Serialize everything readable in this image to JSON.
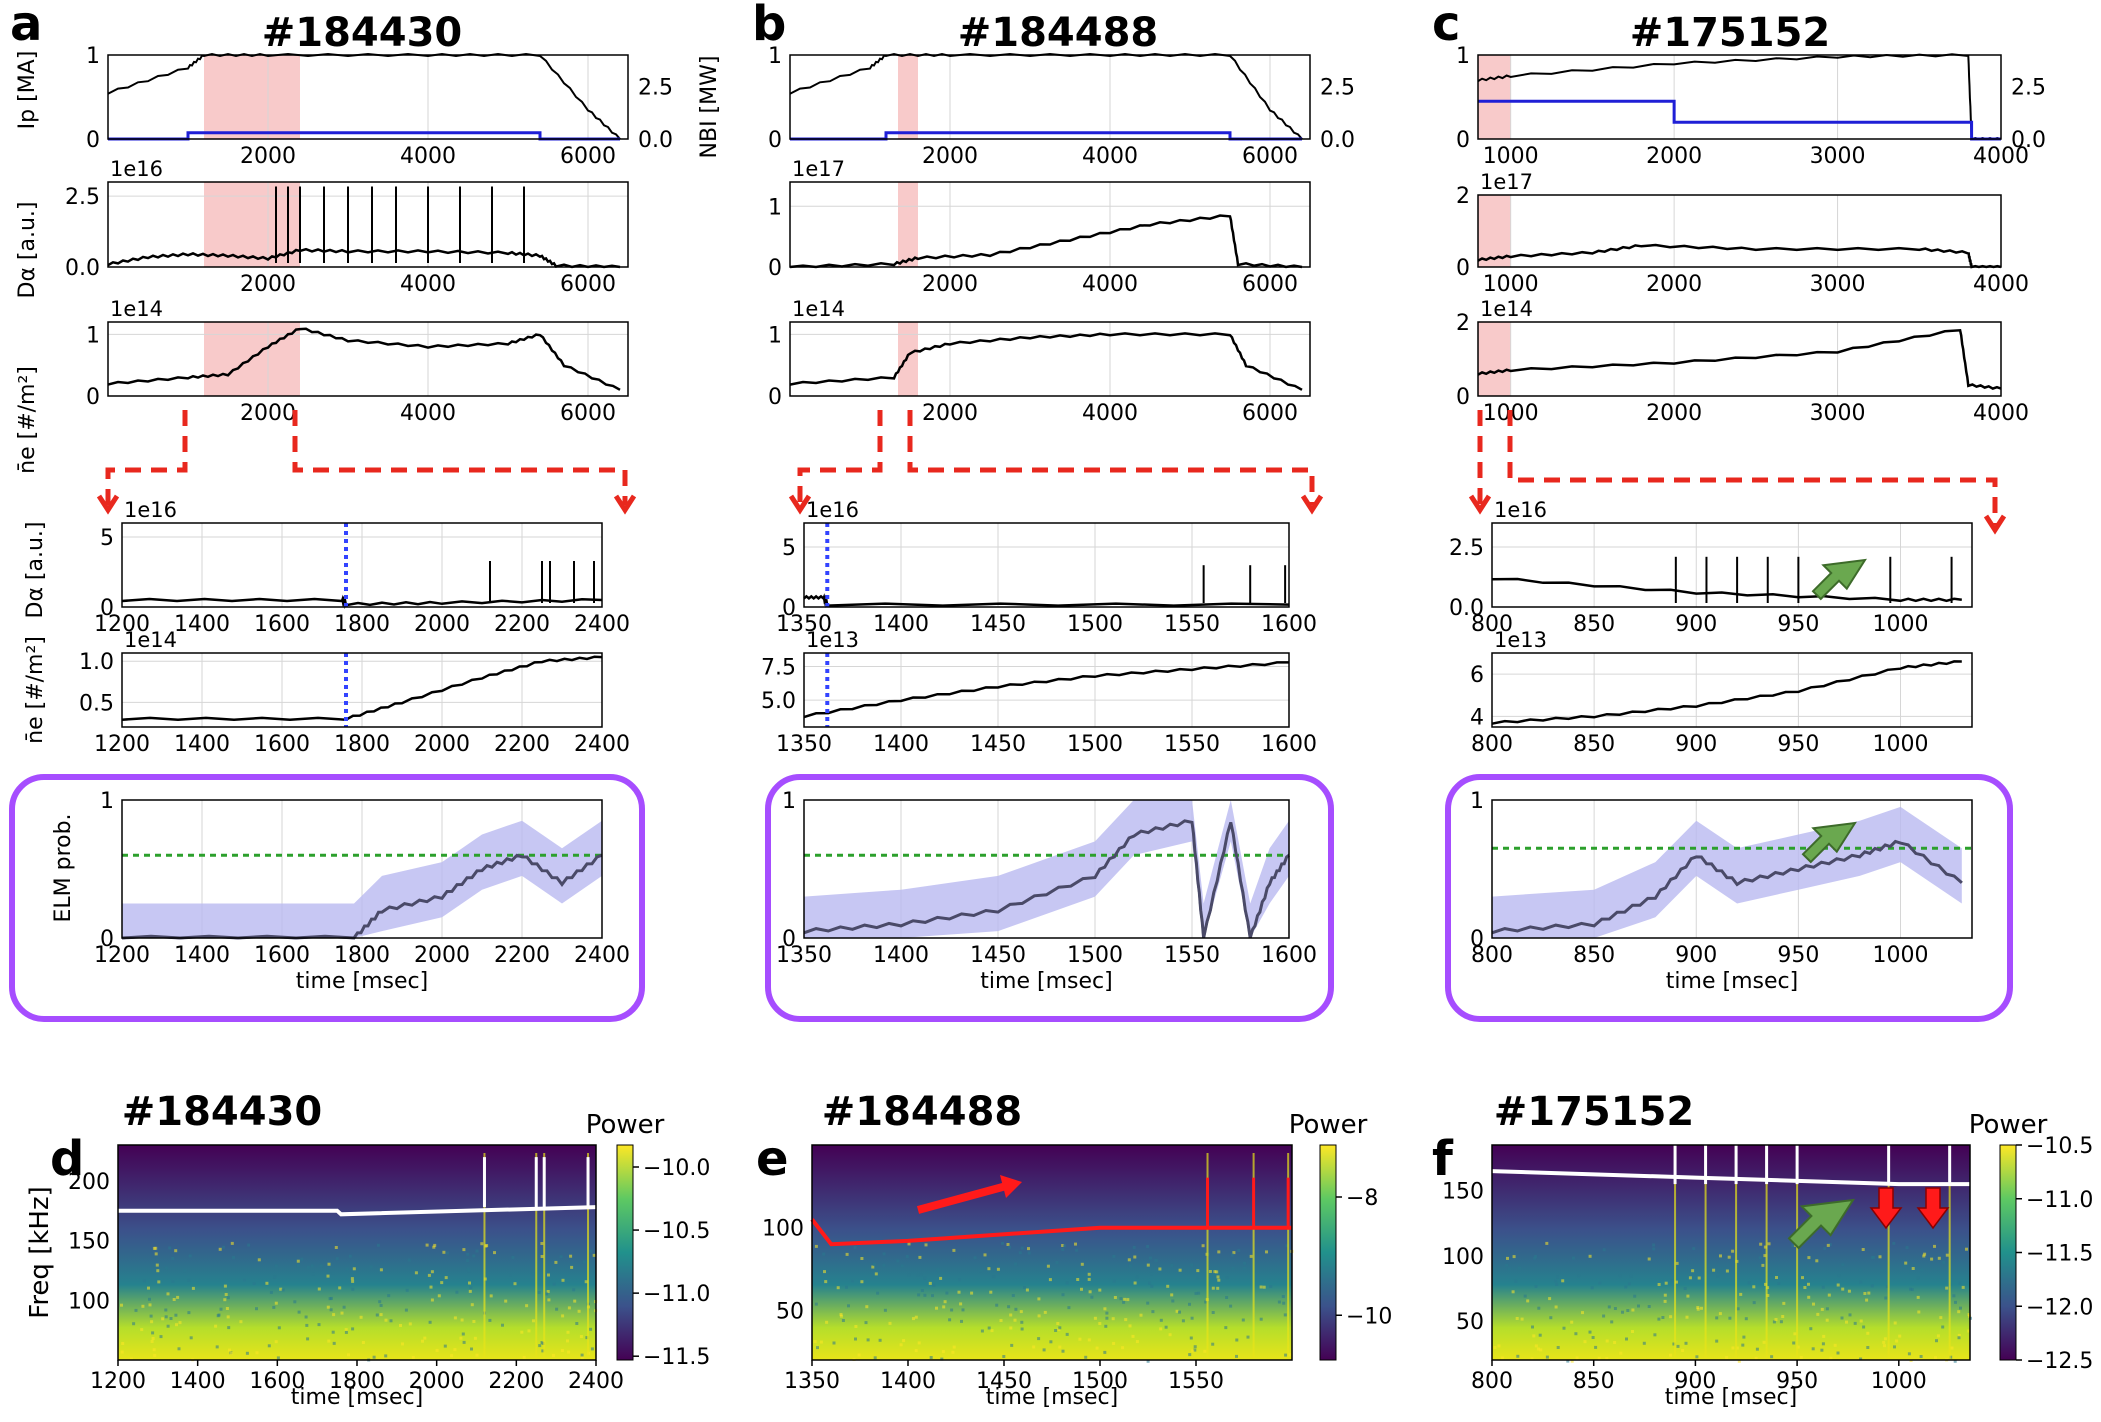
{
  "figure": {
    "panel_letters": [
      "a",
      "b",
      "c",
      "d",
      "e",
      "f"
    ],
    "shots": [
      "#184430",
      "#184488",
      "#175152"
    ],
    "colors": {
      "line": "#000000",
      "nbi": "#1f1fd6",
      "shade": "#f4a6a6",
      "arrow": "#e8281e",
      "box": "#a64dff",
      "threshold": "#2ca02c",
      "prob": "#4a4a68",
      "prob_band": "#b9b9f0",
      "green_arrow": "#6aa84f"
    }
  },
  "chart_data": [
    {
      "id": "a-top",
      "type": "line",
      "shot": "#184430",
      "ylabel": "Ip [MA]",
      "ylabel2": "NBI [MW]",
      "x": [
        0,
        1000,
        1200,
        2000,
        4000,
        5400,
        6000,
        6400
      ],
      "series": [
        {
          "name": "Ip",
          "values": [
            0.55,
            0.85,
            1.0,
            1.0,
            1.0,
            1.0,
            0.35,
            0.0
          ]
        },
        {
          "name": "NBI",
          "axis": "right",
          "values": [
            0.0,
            0.3,
            0.3,
            0.3,
            0.3,
            0.0,
            0.0,
            0.0
          ]
        }
      ],
      "xlim": [
        0,
        6500
      ],
      "ylim": [
        0,
        1
      ],
      "ylim2": [
        0,
        4
      ],
      "xticks": [
        "2000",
        "4000",
        "6000"
      ],
      "yticks": [
        "0",
        "1"
      ],
      "yticks2": [
        "0.0",
        "2.5"
      ],
      "shaded": [
        1200,
        2400
      ]
    },
    {
      "id": "a-mid",
      "type": "line",
      "ylabel": "Dα [a.u.]",
      "scale": "1e16",
      "x": [
        0,
        500,
        1000,
        1500,
        2000,
        2400,
        3000,
        4000,
        5000,
        5400,
        5600,
        6400
      ],
      "values": [
        0.1,
        0.35,
        0.45,
        0.4,
        0.3,
        0.6,
        0.55,
        0.55,
        0.5,
        0.4,
        0.05,
        0.0
      ],
      "spikes": [
        2100,
        2250,
        2400,
        2700,
        3000,
        3300,
        3600,
        4000,
        4400,
        4800,
        5200
      ],
      "xlim": [
        0,
        6500
      ],
      "ylim": [
        0,
        3
      ],
      "xticks": [
        "2000",
        "4000",
        "6000"
      ],
      "yticks": [
        "0.0",
        "2.5"
      ],
      "shaded": [
        1200,
        2400
      ]
    },
    {
      "id": "a-bot",
      "type": "line",
      "ylabel": "n̄e [#/m²]",
      "scale": "1e14",
      "x": [
        0,
        1000,
        1500,
        2000,
        2400,
        3000,
        4000,
        5000,
        5400,
        5700,
        6400
      ],
      "values": [
        0.2,
        0.3,
        0.35,
        0.8,
        1.1,
        0.9,
        0.8,
        0.85,
        1.0,
        0.5,
        0.1
      ],
      "xlim": [
        0,
        6500
      ],
      "ylim": [
        0,
        1.2
      ],
      "xticks": [
        "2000",
        "4000",
        "6000"
      ],
      "yticks": [
        "0",
        "1"
      ],
      "shaded": [
        1200,
        2400
      ]
    },
    {
      "id": "a-zoom-da",
      "type": "line",
      "ylabel": "Dα [a.u.]",
      "scale": "1e16",
      "x": [
        1200,
        1750,
        1760,
        2000,
        2400
      ],
      "values": [
        0.5,
        0.5,
        0.2,
        0.3,
        0.5
      ],
      "spikes": [
        2120,
        2250,
        2270,
        2330,
        2380
      ],
      "xlim": [
        1200,
        2400
      ],
      "ylim": [
        0,
        6
      ],
      "xticks": [
        "1200",
        "1400",
        "1600",
        "1800",
        "2000",
        "2200",
        "2400"
      ],
      "yticks": [
        "0",
        "5"
      ],
      "marker": 1760
    },
    {
      "id": "a-zoom-ne",
      "type": "line",
      "ylabel": "n̄e [#/m²]",
      "scale": "1e14",
      "x": [
        1200,
        1760,
        1900,
        2100,
        2250,
        2400
      ],
      "values": [
        0.3,
        0.3,
        0.5,
        0.8,
        1.0,
        1.05
      ],
      "xlim": [
        1200,
        2400
      ],
      "ylim": [
        0.2,
        1.1
      ],
      "xticks": [
        "1200",
        "1400",
        "1600",
        "1800",
        "2000",
        "2200",
        "2400"
      ],
      "yticks": [
        "0.5",
        "1.0"
      ],
      "marker": 1760
    },
    {
      "id": "a-prob",
      "type": "line",
      "ylabel": "ELM prob.",
      "xlabel": "time [msec]",
      "x": [
        1200,
        1780,
        1850,
        2000,
        2100,
        2200,
        2300,
        2400
      ],
      "values": [
        0.0,
        0.0,
        0.2,
        0.3,
        0.5,
        0.6,
        0.4,
        0.6
      ],
      "threshold": 0.6,
      "xlim": [
        1200,
        2400
      ],
      "ylim": [
        0,
        1
      ],
      "xticks": [
        "1200",
        "1400",
        "1600",
        "1800",
        "2000",
        "2200",
        "2400"
      ],
      "yticks": [
        "0",
        "1"
      ]
    },
    {
      "id": "b-top",
      "type": "line",
      "shot": "#184488",
      "x": [
        0,
        1000,
        1200,
        2000,
        4000,
        5500,
        6000,
        6400
      ],
      "series": [
        {
          "name": "Ip",
          "values": [
            0.55,
            0.85,
            1.0,
            1.0,
            1.0,
            1.0,
            0.35,
            0.0
          ]
        },
        {
          "name": "NBI",
          "axis": "right",
          "values": [
            0.0,
            0.0,
            0.3,
            0.3,
            0.3,
            0.0,
            0.0,
            0.0
          ]
        }
      ],
      "xlim": [
        0,
        6500
      ],
      "ylim": [
        0,
        1
      ],
      "ylim2": [
        0,
        4
      ],
      "xticks": [
        "2000",
        "4000",
        "6000"
      ],
      "yticks": [
        "0",
        "1"
      ],
      "yticks2": [
        "0.0",
        "2.5"
      ],
      "shaded": [
        1350,
        1600
      ]
    },
    {
      "id": "b-mid",
      "type": "line",
      "scale": "1e17",
      "x": [
        0,
        1300,
        1600,
        2500,
        3500,
        4500,
        5500,
        5600,
        6400
      ],
      "values": [
        0.0,
        0.05,
        0.15,
        0.2,
        0.45,
        0.7,
        0.85,
        0.05,
        0.0
      ],
      "xlim": [
        0,
        6500
      ],
      "ylim": [
        0,
        1.4
      ],
      "xticks": [
        "2000",
        "4000",
        "6000"
      ],
      "yticks": [
        "0",
        "1"
      ],
      "shaded": [
        1350,
        1600
      ]
    },
    {
      "id": "b-bot",
      "type": "line",
      "scale": "1e14",
      "x": [
        0,
        1300,
        1500,
        2000,
        3000,
        4000,
        5500,
        5700,
        6400
      ],
      "values": [
        0.2,
        0.3,
        0.7,
        0.85,
        0.95,
        1.0,
        1.0,
        0.5,
        0.1
      ],
      "xlim": [
        0,
        6500
      ],
      "ylim": [
        0,
        1.2
      ],
      "xticks": [
        "2000",
        "4000",
        "6000"
      ],
      "yticks": [
        "0",
        "1"
      ],
      "shaded": [
        1350,
        1600
      ]
    },
    {
      "id": "b-zoom-da",
      "type": "line",
      "scale": "1e16",
      "x": [
        1350,
        1360,
        1362,
        1600
      ],
      "values": [
        0.8,
        0.8,
        0.2,
        0.2
      ],
      "spikes": [
        1556,
        1580,
        1598
      ],
      "xlim": [
        1350,
        1600
      ],
      "ylim": [
        0,
        7
      ],
      "xticks": [
        "1350",
        "1400",
        "1450",
        "1500",
        "1550",
        "1600"
      ],
      "yticks": [
        "0",
        "5"
      ],
      "marker": 1362
    },
    {
      "id": "b-zoom-ne",
      "type": "line",
      "scale": "1e13",
      "x": [
        1350,
        1400,
        1450,
        1500,
        1550,
        1600
      ],
      "values": [
        3.8,
        5.0,
        6.0,
        6.8,
        7.3,
        7.8
      ],
      "xlim": [
        1350,
        1600
      ],
      "ylim": [
        3,
        8.5
      ],
      "xticks": [
        "1350",
        "1400",
        "1450",
        "1500",
        "1550",
        "1600"
      ],
      "yticks": [
        "5.0",
        "7.5"
      ],
      "marker": 1362
    },
    {
      "id": "b-prob",
      "type": "line",
      "xlabel": "time [msec]",
      "x": [
        1350,
        1400,
        1450,
        1500,
        1520,
        1550,
        1556,
        1570,
        1580,
        1590,
        1600
      ],
      "values": [
        0.05,
        0.1,
        0.2,
        0.45,
        0.75,
        0.85,
        0.0,
        0.85,
        0.0,
        0.4,
        0.6
      ],
      "threshold": 0.6,
      "xlim": [
        1350,
        1600
      ],
      "ylim": [
        0,
        1
      ],
      "xticks": [
        "1350",
        "1400",
        "1450",
        "1500",
        "1550",
        "1600"
      ],
      "yticks": [
        "0",
        "1"
      ]
    },
    {
      "id": "c-top",
      "type": "line",
      "shot": "#175152",
      "x": [
        800,
        1000,
        2000,
        3000,
        3800,
        3820,
        4000
      ],
      "series": [
        {
          "name": "Ip",
          "values": [
            0.7,
            0.75,
            0.9,
            0.98,
            1.0,
            0.0,
            0.0
          ]
        },
        {
          "name": "NBI",
          "axis": "right",
          "values": [
            1.8,
            1.8,
            0.8,
            0.8,
            0.8,
            0.0,
            0.0
          ]
        }
      ],
      "xlim": [
        800,
        4000
      ],
      "ylim": [
        0,
        1
      ],
      "ylim2": [
        0,
        4
      ],
      "xticks": [
        "1000",
        "2000",
        "3000",
        "4000"
      ],
      "yticks": [
        "0",
        "1"
      ],
      "yticks2": [
        "0.0",
        "2.5"
      ],
      "shaded": [
        800,
        1000
      ]
    },
    {
      "id": "c-mid",
      "type": "line",
      "scale": "1e17",
      "x": [
        800,
        1000,
        1500,
        1800,
        2500,
        3500,
        3800,
        3820,
        4000
      ],
      "values": [
        0.2,
        0.3,
        0.4,
        0.6,
        0.5,
        0.5,
        0.4,
        0.0,
        0.0
      ],
      "xlim": [
        800,
        4000
      ],
      "ylim": [
        0,
        2
      ],
      "xticks": [
        "1000",
        "2000",
        "3000",
        "4000"
      ],
      "yticks": [
        "0",
        "2"
      ],
      "shaded": [
        800,
        1000
      ]
    },
    {
      "id": "c-bot",
      "type": "line",
      "scale": "1e14",
      "x": [
        800,
        1000,
        2000,
        3000,
        3750,
        3800,
        4000
      ],
      "values": [
        0.6,
        0.7,
        0.9,
        1.2,
        1.8,
        0.3,
        0.2
      ],
      "xlim": [
        800,
        4000
      ],
      "ylim": [
        0,
        2
      ],
      "xticks": [
        "1000",
        "2000",
        "3000",
        "4000"
      ],
      "yticks": [
        "0",
        "2"
      ],
      "shaded": [
        800,
        1000
      ]
    },
    {
      "id": "c-zoom-da",
      "type": "line",
      "scale": "1e16",
      "x": [
        800,
        900,
        1000,
        1030
      ],
      "values": [
        1.2,
        0.6,
        0.3,
        0.3
      ],
      "spikes": [
        890,
        905,
        920,
        935,
        950,
        995,
        1025
      ],
      "xlim": [
        800,
        1035
      ],
      "ylim": [
        0,
        3.5
      ],
      "xticks": [
        "800",
        "850",
        "900",
        "950",
        "1000"
      ],
      "yticks": [
        "0.0",
        "2.5"
      ]
    },
    {
      "id": "c-zoom-ne",
      "type": "line",
      "scale": "1e13",
      "x": [
        800,
        850,
        900,
        950,
        1000,
        1030
      ],
      "values": [
        3.7,
        4.0,
        4.5,
        5.2,
        6.3,
        6.6
      ],
      "xlim": [
        800,
        1035
      ],
      "ylim": [
        3.5,
        7
      ],
      "xticks": [
        "800",
        "850",
        "900",
        "950",
        "1000"
      ],
      "yticks": [
        "4",
        "6"
      ]
    },
    {
      "id": "c-prob",
      "type": "line",
      "xlabel": "time [msec]",
      "x": [
        800,
        850,
        880,
        900,
        920,
        950,
        980,
        1000,
        1030
      ],
      "values": [
        0.05,
        0.1,
        0.3,
        0.6,
        0.4,
        0.5,
        0.6,
        0.7,
        0.4
      ],
      "threshold": 0.65,
      "xlim": [
        800,
        1035
      ],
      "ylim": [
        0,
        1
      ],
      "xticks": [
        "800",
        "850",
        "900",
        "950",
        "1000"
      ],
      "yticks": [
        "0",
        "1"
      ]
    },
    {
      "id": "d-spec",
      "type": "heatmap",
      "shot": "#184430",
      "ylabel": "Freq [kHz]",
      "xlabel": "time [msec]",
      "colorbar_label": "Power",
      "xlim": [
        1200,
        2400
      ],
      "ylim": [
        50,
        230
      ],
      "ridge": {
        "x": [
          1200,
          1750,
          1760,
          2400
        ],
        "y": [
          175,
          175,
          172,
          178
        ]
      },
      "spikes": [
        2120,
        2250,
        2270,
        2380
      ],
      "xticks": [
        "1200",
        "1400",
        "1600",
        "1800",
        "2000",
        "2200",
        "2400"
      ],
      "yticks": [
        "100",
        "150",
        "200"
      ],
      "colorbar_ticks": [
        "−10.0",
        "−10.5",
        "−11.0",
        "−11.5"
      ]
    },
    {
      "id": "e-spec",
      "type": "heatmap",
      "shot": "#184488",
      "xlabel": "time [msec]",
      "colorbar_label": "Power",
      "xlim": [
        1350,
        1600
      ],
      "ylim": [
        20,
        150
      ],
      "ridge": {
        "x": [
          1350,
          1360,
          1400,
          1500,
          1600
        ],
        "y": [
          105,
          90,
          92,
          100,
          100
        ]
      },
      "spikes": [
        1556,
        1580,
        1598
      ],
      "xticks": [
        "1350",
        "1400",
        "1450",
        "1500",
        "1550"
      ],
      "yticks": [
        "50",
        "100"
      ],
      "colorbar_ticks": [
        "−8",
        "−10"
      ]
    },
    {
      "id": "f-spec",
      "type": "heatmap",
      "shot": "#175152",
      "xlabel": "time [msec]",
      "colorbar_label": "Power",
      "xlim": [
        800,
        1035
      ],
      "ylim": [
        20,
        185
      ],
      "ridge": {
        "x": [
          800,
          900,
          1000,
          1035
        ],
        "y": [
          165,
          160,
          155,
          155
        ]
      },
      "spikes": [
        890,
        905,
        920,
        935,
        950,
        995,
        1025
      ],
      "xticks": [
        "800",
        "850",
        "900",
        "950",
        "1000"
      ],
      "yticks": [
        "50",
        "100",
        "150"
      ],
      "colorbar_ticks": [
        "−10.5",
        "−11.0",
        "−11.5",
        "−12.0",
        "−12.5"
      ]
    }
  ]
}
